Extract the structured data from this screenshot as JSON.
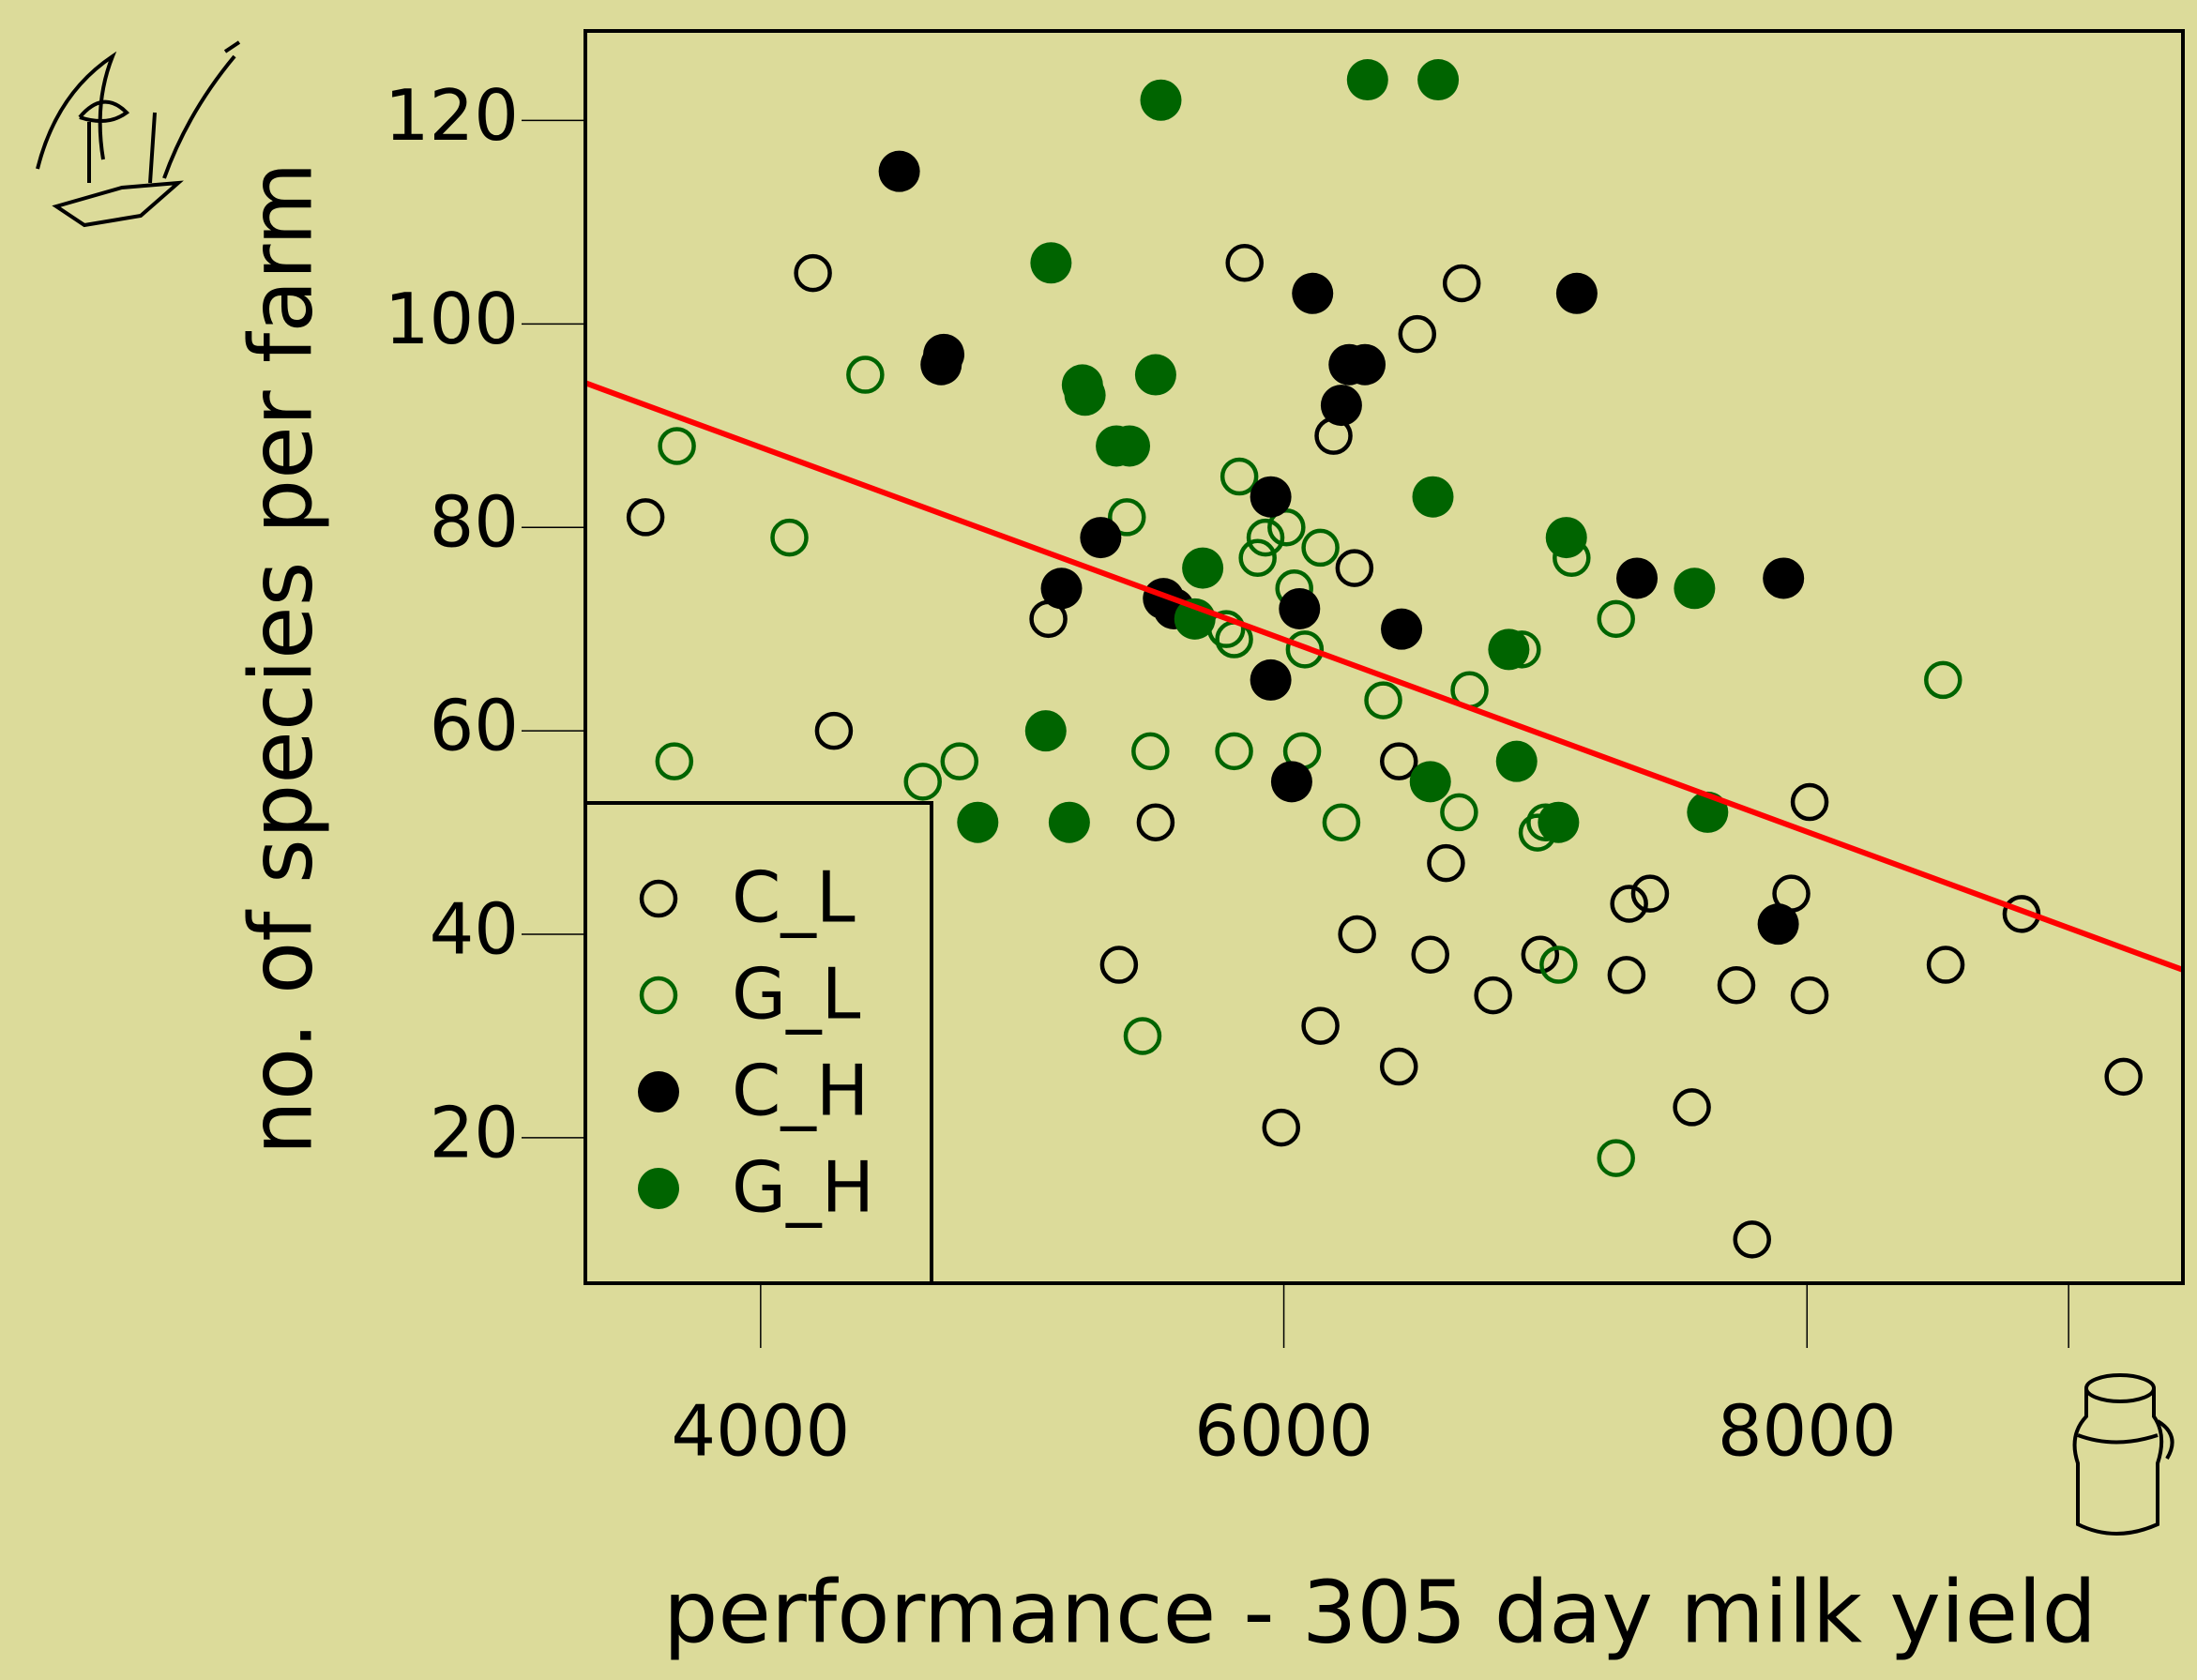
{
  "chart_data": {
    "type": "scatter",
    "xlabel": "performance - 305 day milk yield",
    "ylabel": "no. of species per farm",
    "xlim": [
      3330,
      9437
    ],
    "ylim": [
      5.7,
      128.8
    ],
    "xticks": [
      4000,
      6000,
      8000,
      {
        "value": 9000,
        "label": null
      }
    ],
    "yticks": [
      20,
      40,
      60,
      80,
      100,
      120
    ],
    "legend": "bottom-left",
    "series": [
      {
        "name": "C_L",
        "color": "#000000",
        "filled": false,
        "x": [
          4200,
          3560,
          4280,
          5100,
          5850,
          6680,
          6510,
          6190,
          6270,
          6440,
          5510,
          8010,
          6620,
          7320,
          7400,
          7940,
          8820,
          6280,
          5370,
          6560,
          6800,
          6980,
          7310,
          7730,
          8010,
          8530,
          6140,
          6440,
          5990,
          7560,
          9210,
          7790
        ],
        "values": [
          105,
          81,
          60,
          71,
          106,
          104,
          99,
          89,
          76,
          57,
          51,
          53,
          47,
          43,
          44,
          44,
          42,
          40,
          37,
          38,
          34,
          38,
          36,
          35,
          34,
          37,
          31,
          27,
          21,
          23,
          26,
          10
        ]
      },
      {
        "name": "G_L",
        "color": "#006400",
        "filled": false,
        "x": [
          4400,
          3680,
          4110,
          3670,
          4620,
          4760,
          5400,
          5830,
          5900,
          5930,
          6010,
          6140,
          6040,
          6080,
          5780,
          5810,
          5490,
          5810,
          6070,
          6220,
          6380,
          6710,
          6670,
          6910,
          6970,
          7000,
          7100,
          7270,
          7050,
          8520,
          5460,
          7270
        ],
        "values": [
          95,
          88,
          79,
          57,
          55,
          57,
          81,
          85,
          77,
          79,
          80,
          78,
          74,
          68,
          70,
          69,
          58,
          58,
          58,
          51,
          63,
          64,
          52,
          68,
          50,
          51,
          77,
          71,
          37,
          65,
          30,
          18
        ]
      },
      {
        "name": "C_H",
        "color": "#000000",
        "filled": true,
        "x": [
          4530,
          4690,
          4700,
          6110,
          7120,
          6250,
          6310,
          6220,
          5950,
          5300,
          5150,
          5540,
          5580,
          6060,
          5950,
          6450,
          6030,
          7350,
          7910,
          7890
        ],
        "values": [
          115,
          96,
          97,
          103,
          103,
          96,
          96,
          92,
          83,
          79,
          74,
          73,
          72,
          72,
          65,
          70,
          55,
          75,
          75,
          41
        ]
      },
      {
        "name": "G_H",
        "color": "#006400",
        "filled": true,
        "x": [
          5530,
          6320,
          6590,
          5110,
          5230,
          5240,
          5510,
          5360,
          5410,
          6570,
          5690,
          5660,
          7080,
          6860,
          7570,
          5090,
          4830,
          5180,
          6890,
          6560,
          7050,
          7620
        ],
        "values": [
          122,
          124,
          124,
          106,
          94,
          93,
          95,
          88,
          88,
          83,
          76,
          71,
          79,
          68,
          74,
          60,
          51,
          51,
          57,
          55,
          51,
          52
        ]
      }
    ],
    "fit_line": {
      "color": "#ff0000",
      "x": [
        3330,
        9437
      ],
      "y": [
        94.2,
        36.5
      ]
    }
  }
}
